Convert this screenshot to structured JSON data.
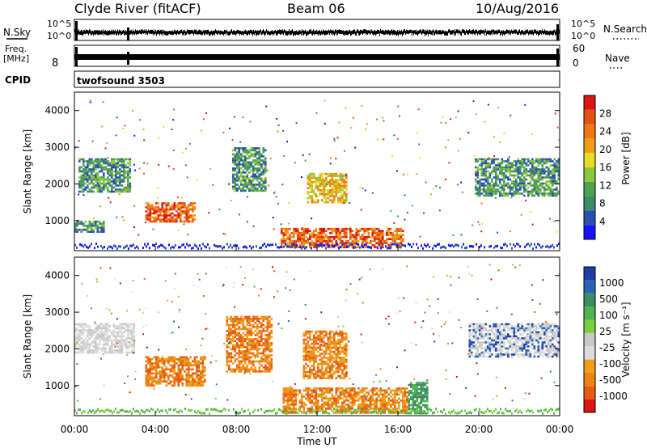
{
  "header": {
    "station": "Clyde River (fitACF)",
    "beam": "Beam 06",
    "date": "10/Aug/2016"
  },
  "strip_nsky": {
    "left_label": "N.Sky",
    "right_label": "N.Search",
    "tick_top": "10^5",
    "tick_bottom": "10^0",
    "right_tick_top": "10^5",
    "right_tick_bottom": "10^0"
  },
  "strip_freq": {
    "left_label_line1": "Freq.",
    "left_label_line2": "[MHz]",
    "left_tick": "8",
    "right_label": "Nave",
    "right_tick_top": "60",
    "right_tick_bottom": "0"
  },
  "strip_cpid": {
    "label": "CPID",
    "value": "twofsound 3503"
  },
  "axes": {
    "ylabel": "Slant Range [km]",
    "xlabel": "Time UT",
    "y_ticks": [
      "1000",
      "2000",
      "3000",
      "4000"
    ],
    "x_ticks": [
      "00:00",
      "04:00",
      "08:00",
      "12:00",
      "16:00",
      "20:00",
      "00:00"
    ]
  },
  "colorbars": {
    "power": {
      "label": "Power [dB]",
      "ticks": [
        "4",
        "8",
        "12",
        "16",
        "20",
        "24",
        "28"
      ],
      "colors": [
        "#1414ff",
        "#2850b4",
        "#3c8c64",
        "#50a050",
        "#8cc83c",
        "#e6dc28",
        "#f0a014",
        "#f07814",
        "#e65014",
        "#dc1414"
      ]
    },
    "velocity": {
      "label": "Velocity [m s⁻¹]",
      "ticks": [
        "1000",
        "500",
        "100",
        "25",
        "-25",
        "-100",
        "-500",
        "-1000"
      ],
      "colors": [
        "#1e3caa",
        "#2864b4",
        "#3c8c64",
        "#50b450",
        "#78d23c",
        "#c8c8c8",
        "#dcdcdc",
        "#f0a014",
        "#f08214",
        "#e65a14",
        "#dc1414"
      ]
    }
  },
  "chart_data": [
    {
      "type": "heatmap",
      "title": "Power",
      "x_range_hours": [
        0,
        24
      ],
      "y_range_km": [
        180,
        4500
      ],
      "regions": [
        {
          "t0": 0.2,
          "t1": 2.8,
          "r0": 1800,
          "r1": 2700,
          "level": "8-16 dB"
        },
        {
          "t0": 0.0,
          "t1": 1.5,
          "r0": 700,
          "r1": 1000,
          "level": "8-12 dB"
        },
        {
          "t0": 3.5,
          "t1": 6.0,
          "r0": 1000,
          "r1": 1500,
          "level": "20-28 dB"
        },
        {
          "t0": 7.8,
          "t1": 9.5,
          "r0": 1800,
          "r1": 3000,
          "level": "8-16 dB"
        },
        {
          "t0": 10.2,
          "t1": 16.3,
          "r0": 250,
          "r1": 800,
          "level": "20-28 dB"
        },
        {
          "t0": 11.5,
          "t1": 13.5,
          "r0": 1500,
          "r1": 2300,
          "level": "12-24 dB"
        },
        {
          "t0": 19.8,
          "t1": 24.0,
          "r0": 1700,
          "r1": 2700,
          "level": "8-20 dB"
        }
      ]
    },
    {
      "type": "heatmap",
      "title": "Velocity",
      "x_range_hours": [
        0,
        24
      ],
      "y_range_km": [
        180,
        4500
      ],
      "regions": [
        {
          "t0": 0.0,
          "t1": 3.0,
          "r0": 1900,
          "r1": 2700,
          "velocity": "±25 (grey)"
        },
        {
          "t0": 3.5,
          "t1": 6.5,
          "r0": 1000,
          "r1": 1800,
          "velocity": "-100 to -500"
        },
        {
          "t0": 7.5,
          "t1": 9.8,
          "r0": 1400,
          "r1": 2900,
          "velocity": "-100 to -500"
        },
        {
          "t0": 10.3,
          "t1": 16.5,
          "r0": 250,
          "r1": 950,
          "velocity": "-100 to -500"
        },
        {
          "t0": 11.3,
          "t1": 13.5,
          "r0": 1200,
          "r1": 2500,
          "velocity": "-100 to -500"
        },
        {
          "t0": 16.5,
          "t1": 17.5,
          "r0": 250,
          "r1": 1100,
          "velocity": "+100 (green)"
        },
        {
          "t0": 19.5,
          "t1": 24.0,
          "r0": 1800,
          "r1": 2700,
          "velocity": "±25 / +500"
        }
      ]
    }
  ]
}
